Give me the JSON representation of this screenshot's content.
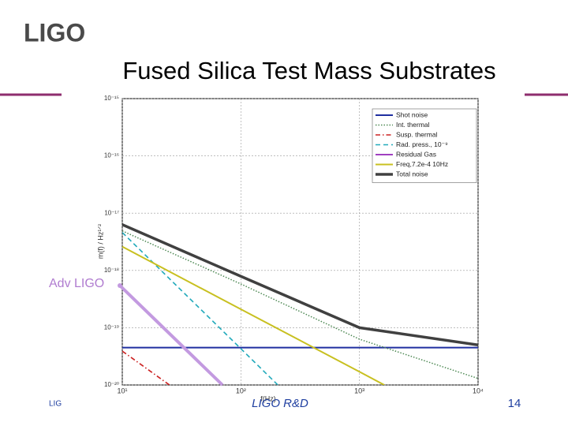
{
  "logo": "LIGO",
  "title": "Fused Silica Test Mass Substrates",
  "annotation": "Adv LIGO",
  "footer": {
    "left": "LIG",
    "center": "LIGO R&D",
    "page": "14"
  },
  "chart_data": {
    "type": "line",
    "xlabel": "f(Hz)",
    "ylabel": "m(f) / Hz¹ᐟ²",
    "xscale": "log",
    "yscale": "log",
    "grid": true,
    "legend": "top-right",
    "xlim": [
      10,
      10000
    ],
    "xticks": [
      {
        "value": 10,
        "label": "10¹"
      },
      {
        "value": 100,
        "label": "10²"
      },
      {
        "value": 1000,
        "label": "10³"
      },
      {
        "value": 10000,
        "label": "10⁴"
      }
    ],
    "ylim": [
      1e-20,
      1e-15
    ],
    "yticks": [
      {
        "value": 1e-20,
        "label": "10⁻²⁰"
      },
      {
        "value": 1e-19,
        "label": "10⁻¹⁹"
      },
      {
        "value": 1e-18,
        "label": "10⁻¹⁸"
      },
      {
        "value": 1e-17,
        "label": "10⁻¹⁷"
      },
      {
        "value": 1e-16,
        "label": "10⁻¹⁶"
      },
      {
        "value": 1e-15,
        "label": "10⁻¹⁵"
      }
    ],
    "series": [
      {
        "name": "Shot noise",
        "color": "#1f2fa0",
        "style": "solid",
        "x": [
          10,
          10000
        ],
        "values": [
          4.5e-20,
          4.5e-20
        ]
      },
      {
        "name": "Int. thermal",
        "color": "#4f8a55",
        "style": "dotted",
        "x": [
          10,
          100,
          1000,
          10000
        ],
        "values": [
          4.9e-18,
          5.8e-19,
          6.3e-20,
          1.3e-20
        ]
      },
      {
        "name": "Susp. thermal",
        "color": "#cc2222",
        "style": "dashdot",
        "x": [
          10,
          25
        ],
        "values": [
          3.9e-20,
          1e-20
        ]
      },
      {
        "name": "Rad. press., 10⁻⁹",
        "color": "#22aabb",
        "style": "dashed",
        "x": [
          10,
          100,
          205
        ],
        "values": [
          4.6e-18,
          4.3e-20,
          1e-20
        ]
      },
      {
        "name": "Residual Gas",
        "color": "#a040c0",
        "style": "solid",
        "x": [
          10,
          10000
        ],
        "values": [
          null,
          null
        ]
      },
      {
        "name": "Freq,7.2e-4 10Hz",
        "color": "#c8c020",
        "style": "solid",
        "x": [
          10,
          100,
          1000,
          1620
        ],
        "values": [
          2.6e-18,
          2.1e-19,
          1.7e-20,
          1e-20
        ]
      },
      {
        "name": "Total noise",
        "color": "#404040",
        "style": "thick",
        "x": [
          10,
          100,
          1000,
          10000
        ],
        "values": [
          6.3e-18,
          7.9e-19,
          1e-19,
          5e-20
        ]
      }
    ]
  }
}
